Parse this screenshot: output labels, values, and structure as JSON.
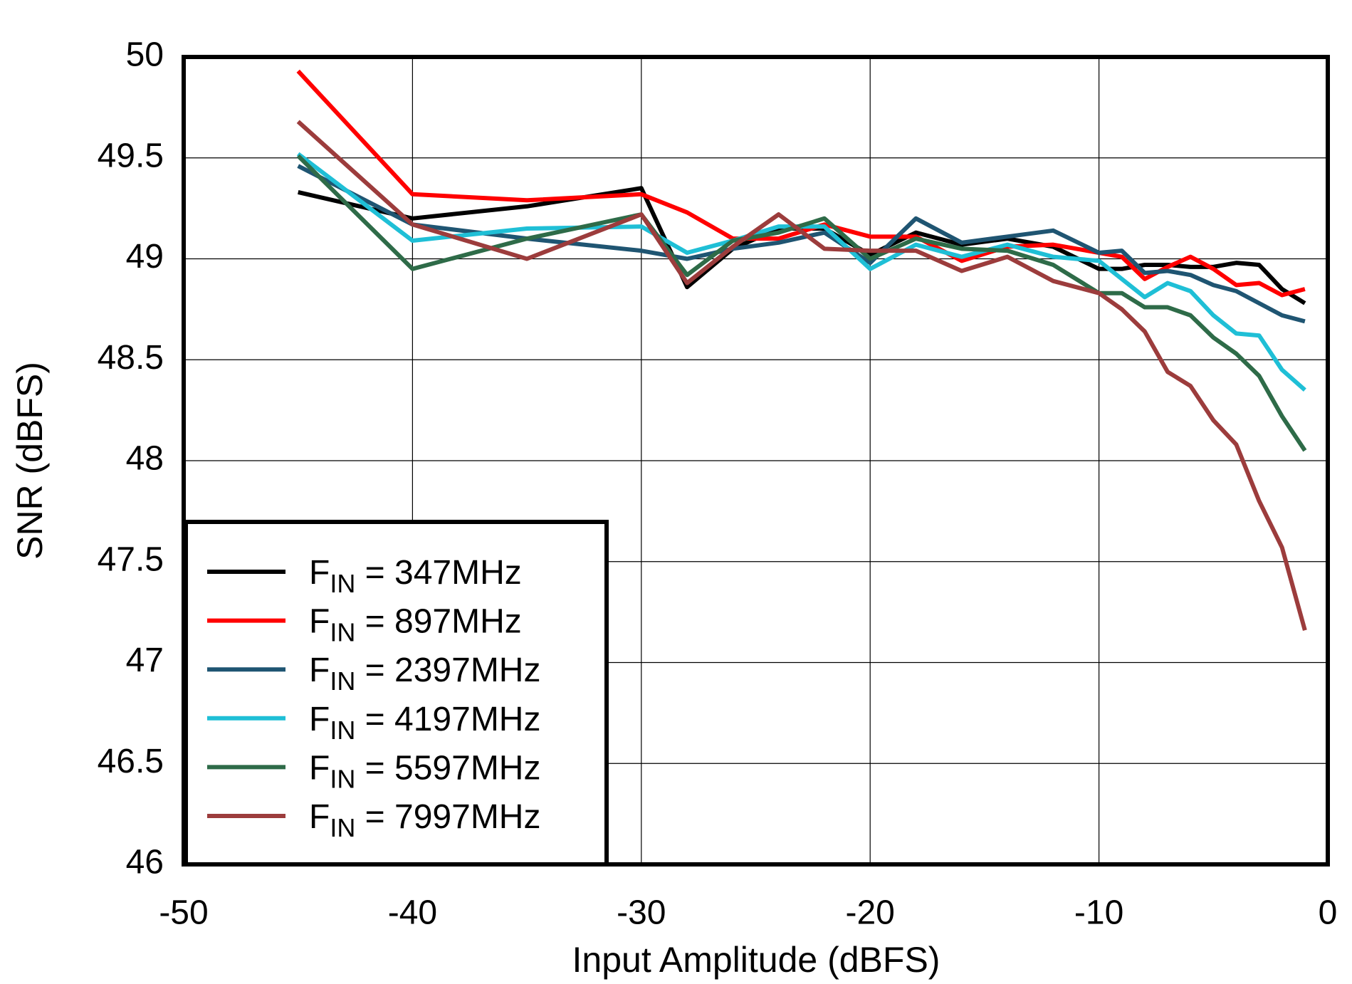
{
  "chart_data": {
    "type": "line",
    "x_label": "Input Amplitude  (dBFS)",
    "y_label": "SNR  (dBFS)",
    "x": [
      -45,
      -40,
      -35,
      -30,
      -28,
      -26,
      -24,
      -22,
      -20,
      -18,
      -16,
      -14,
      -12,
      -10,
      -9,
      -8,
      -7,
      -6,
      -5,
      -4,
      -3,
      -2,
      -1
    ],
    "series": [
      {
        "name": "FIN = 347MHz",
        "color": "#000000",
        "values": [
          49.33,
          49.2,
          49.26,
          49.35,
          48.86,
          49.05,
          49.15,
          49.15,
          49.02,
          49.13,
          49.07,
          49.1,
          49.06,
          48.95,
          48.95,
          48.97,
          48.97,
          48.96,
          48.96,
          48.98,
          48.97,
          48.85,
          48.78
        ]
      },
      {
        "name": "FIN = 897MHz",
        "color": "#ff0000",
        "values": [
          49.93,
          49.32,
          49.29,
          49.32,
          49.23,
          49.1,
          49.1,
          49.17,
          49.11,
          49.11,
          48.99,
          49.06,
          49.07,
          49.03,
          49.01,
          48.9,
          48.96,
          49.01,
          48.95,
          48.87,
          48.88,
          48.82,
          48.85
        ]
      },
      {
        "name": "FIN = 2397MHz",
        "color": "#1f5572",
        "values": [
          49.46,
          49.17,
          49.1,
          49.04,
          49.0,
          49.05,
          49.08,
          49.13,
          48.98,
          49.2,
          49.08,
          49.11,
          49.14,
          49.03,
          49.04,
          48.93,
          48.94,
          48.92,
          48.87,
          48.84,
          48.78,
          48.72,
          48.69
        ]
      },
      {
        "name": "FIN = 4197MHz",
        "color": "#1fbfd6",
        "values": [
          49.52,
          49.09,
          49.15,
          49.16,
          49.03,
          49.09,
          49.16,
          49.16,
          48.95,
          49.07,
          49.01,
          49.07,
          49.01,
          48.99,
          48.9,
          48.81,
          48.88,
          48.84,
          48.72,
          48.63,
          48.62,
          48.45,
          48.35
        ]
      },
      {
        "name": "FIN = 5597MHz",
        "color": "#2e6b48",
        "values": [
          49.51,
          48.95,
          49.1,
          49.22,
          48.92,
          49.09,
          49.13,
          49.2,
          49.0,
          49.1,
          49.05,
          49.04,
          48.97,
          48.83,
          48.83,
          48.76,
          48.76,
          48.72,
          48.61,
          48.53,
          48.42,
          48.22,
          48.05
        ]
      },
      {
        "name": "FIN = 7997MHz",
        "color": "#9c3c3c",
        "values": [
          49.68,
          49.17,
          49.0,
          49.22,
          48.88,
          49.06,
          49.22,
          49.05,
          49.04,
          49.04,
          48.94,
          49.01,
          48.89,
          48.83,
          48.75,
          48.64,
          48.44,
          48.37,
          48.2,
          48.08,
          47.8,
          47.57,
          47.16
        ]
      }
    ],
    "xlim": [
      -50,
      0
    ],
    "xticks": [
      -50,
      -40,
      -30,
      -20,
      -10,
      0
    ],
    "ylim": [
      46,
      50
    ],
    "yticks": [
      46,
      46.5,
      47,
      47.5,
      48,
      48.5,
      49,
      49.5,
      50
    ],
    "grid": true,
    "legend": "lower left"
  }
}
